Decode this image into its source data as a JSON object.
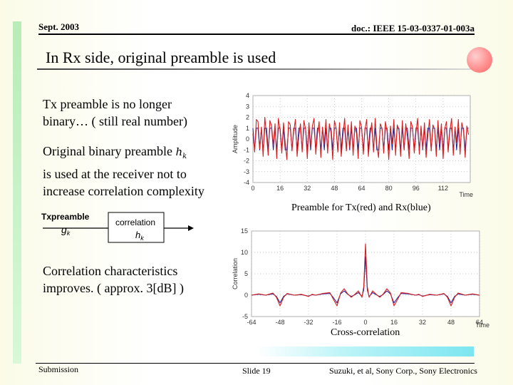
{
  "header": {
    "date": "Sept. 2003",
    "doc": "doc.: IEEE 15-03-0337-01-003a"
  },
  "title": "In Rx side, original preamble is used",
  "bullets": {
    "b1_line1": "Tx preamble is no longer",
    "b1_line2": "binary… ( still real number)",
    "b2_line1": "Original binary preamble",
    "b2_line2": "is used at the receiver not to",
    "b2_line3": "increase correlation complexity",
    "b3_line1": "Correlation characteristics",
    "b3_line2": "improves. ( approx. 3[dB] )"
  },
  "math": {
    "hk": "hk",
    "gk": "gk"
  },
  "diagram": {
    "input_label": "Txpreamble",
    "block_label": "correlation"
  },
  "captions": {
    "top": "Preamble for Tx(red) and Rx(blue)",
    "bottom": "Cross-correlation"
  },
  "footer": {
    "left": "Submission",
    "middle": "Slide 19",
    "right": "Suzuki, et al, Sony Corp., Sony Electronics"
  },
  "colors": {
    "tx": "#d81e1e",
    "rx": "#1a1a9a",
    "corr_a": "#d81e1e",
    "corr_b": "#1a1a9a"
  },
  "chart_data": [
    {
      "type": "line",
      "ylabel": "Amplitude",
      "xlabel": "Time",
      "xlim": [
        0,
        128
      ],
      "ylim": [
        -4,
        4
      ],
      "xticks": [
        0,
        16,
        32,
        48,
        64,
        80,
        96,
        112
      ],
      "yticks": [
        4,
        3,
        2,
        1,
        0,
        -1,
        -2,
        -3,
        -4
      ],
      "grid": true,
      "series": [
        {
          "values": [
            0.5,
            -1.2,
            1.8,
            1.6,
            -0.9,
            1.1,
            -1.6,
            2.0,
            0.3,
            -1.5,
            1.7,
            1.2,
            -0.6,
            1.4,
            -1.8,
            1.9,
            0.8,
            -1.3,
            1.5,
            -0.4,
            -1.9,
            1.6,
            1.3,
            -1.1,
            0.7,
            1.8,
            -1.6,
            0.2,
            1.4,
            -1.2,
            1.7,
            0.9,
            -1.8,
            1.5,
            -0.7,
            1.2,
            1.9,
            -1.4,
            0.4,
            1.6,
            -1.7,
            1.1,
            -0.5,
            1.8,
            -1.3,
            1.4,
            0.6,
            -1.9,
            1.7,
            1.0,
            -1.2,
            1.5,
            -1.6,
            0.3,
            1.9,
            -1.1,
            1.3,
            -0.8,
            1.6,
            -1.5,
            1.2,
            0.5,
            -1.8,
            1.7,
            1.1,
            -1.4,
            0.9,
            1.8,
            -1.6,
            0.4,
            1.5,
            -1.2,
            1.9,
            -0.6,
            -1.7,
            1.4,
            1.0,
            -1.3,
            1.6,
            0.7,
            -1.9,
            1.2,
            -0.4,
            1.8,
            -1.5,
            1.3,
            0.8,
            -1.6,
            1.7,
            -1.0,
            1.4,
            0.2,
            -1.8,
            1.6,
            1.1,
            -1.3,
            0.6,
            1.9,
            -1.4,
            1.2,
            -0.9,
            1.5,
            -1.7,
            0.3,
            1.8,
            -1.1,
            1.3,
            0.9,
            -1.6,
            1.7,
            -0.5,
            1.4,
            -1.8,
            1.0,
            1.6,
            -1.2,
            0.7,
            1.9,
            -1.5,
            1.1,
            -0.3,
            1.8,
            -1.4,
            1.5,
            0.8,
            -1.7,
            1.2,
            0.4
          ]
        },
        {
          "values": [
            1,
            -1,
            1,
            1,
            -1,
            1,
            -1,
            1,
            1,
            -1,
            1,
            1,
            -1,
            1,
            -1,
            1,
            1,
            -1,
            1,
            -1,
            -1,
            1,
            1,
            -1,
            1,
            1,
            -1,
            1,
            1,
            -1,
            1,
            1,
            -1,
            1,
            -1,
            1,
            1,
            -1,
            1,
            1,
            -1,
            1,
            -1,
            1,
            -1,
            1,
            1,
            -1,
            1,
            1,
            -1,
            1,
            -1,
            1,
            1,
            -1,
            1,
            -1,
            1,
            -1,
            1,
            1,
            -1,
            1,
            1,
            -1,
            1,
            1,
            -1,
            1,
            1,
            -1,
            1,
            -1,
            -1,
            1,
            1,
            -1,
            1,
            1,
            -1,
            1,
            -1,
            1,
            -1,
            1,
            1,
            -1,
            1,
            -1,
            1,
            1,
            -1,
            1,
            1,
            -1,
            1,
            1,
            -1,
            1,
            -1,
            1,
            -1,
            1,
            1,
            -1,
            1,
            1,
            -1,
            1,
            -1,
            1,
            -1,
            1,
            1,
            -1,
            1,
            1,
            -1,
            1,
            -1,
            1,
            -1,
            1,
            1,
            -1,
            1,
            1
          ]
        }
      ]
    },
    {
      "type": "line",
      "ylabel": "Correlation",
      "xlabel": "Time",
      "xlim": [
        -64,
        64
      ],
      "ylim": [
        -5,
        15
      ],
      "xticks": [
        -64,
        -48,
        -32,
        -16,
        0,
        16,
        32,
        48,
        64
      ],
      "yticks": [
        15,
        10,
        5,
        0,
        -5
      ],
      "grid": true,
      "series": [
        {
          "x": [
            -64,
            -60,
            -56,
            -52,
            -50,
            -48,
            -46,
            -44,
            -40,
            -36,
            -32,
            -30,
            -28,
            -24,
            -20,
            -18,
            -16,
            -14,
            -12,
            -10,
            -8,
            -6,
            -4,
            -2,
            -1,
            0,
            1,
            2,
            4,
            6,
            8,
            10,
            12,
            14,
            16,
            18,
            20,
            24,
            28,
            30,
            32,
            36,
            40,
            44,
            46,
            48,
            50,
            52,
            56,
            60,
            64
          ],
          "values": [
            0,
            0.3,
            0,
            0.5,
            -0.5,
            -2.5,
            -0.5,
            0.4,
            0,
            0.2,
            -0.3,
            0.2,
            0,
            0.4,
            0.6,
            -1.0,
            -2.5,
            0.5,
            1.5,
            0.3,
            -0.5,
            0.2,
            1.0,
            -0.5,
            2.0,
            12.0,
            2.0,
            -0.5,
            1.0,
            0.2,
            -0.5,
            0.3,
            1.5,
            0.5,
            -2.5,
            -1.0,
            0.6,
            0.4,
            0,
            0.2,
            -0.3,
            0.2,
            0,
            0.4,
            -0.5,
            -2.5,
            -0.5,
            0.5,
            0,
            0.3,
            0
          ]
        },
        {
          "x": [
            -64,
            -60,
            -56,
            -52,
            -50,
            -48,
            -46,
            -44,
            -40,
            -36,
            -32,
            -30,
            -28,
            -24,
            -20,
            -18,
            -16,
            -14,
            -12,
            -10,
            -8,
            -6,
            -4,
            -2,
            -1,
            0,
            1,
            2,
            4,
            6,
            8,
            10,
            12,
            14,
            16,
            18,
            20,
            24,
            28,
            30,
            32,
            36,
            40,
            44,
            46,
            48,
            50,
            52,
            56,
            60,
            64
          ],
          "values": [
            0,
            0.2,
            0,
            0.3,
            -0.3,
            -1.8,
            -0.3,
            0.3,
            0,
            0.1,
            -0.2,
            0.1,
            0,
            0.3,
            0.4,
            -0.6,
            -1.8,
            0.3,
            1.0,
            0.2,
            -0.3,
            0.1,
            0.6,
            -0.3,
            1.2,
            9.0,
            1.2,
            -0.3,
            0.6,
            0.1,
            -0.3,
            0.2,
            1.0,
            0.3,
            -1.8,
            -0.6,
            0.4,
            0.3,
            0,
            0.1,
            -0.2,
            0.1,
            0,
            0.3,
            -0.3,
            -1.8,
            -0.3,
            0.3,
            0,
            0.2,
            0
          ]
        }
      ]
    }
  ]
}
